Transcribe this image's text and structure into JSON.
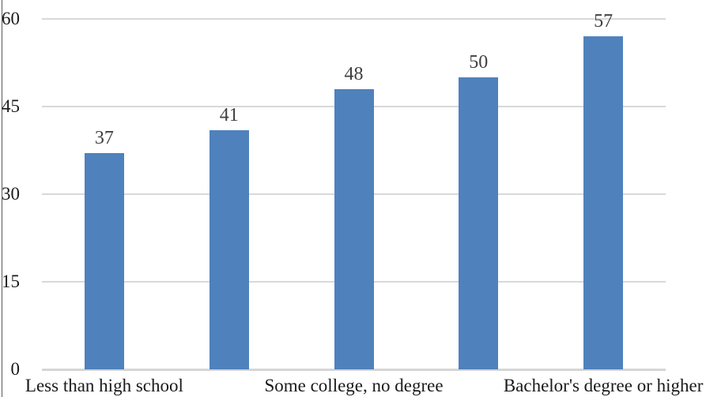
{
  "chart_data": {
    "type": "bar",
    "categories": [
      "Less than high school",
      "",
      "Some college, no degree",
      "",
      "Bachelor's degree or higher"
    ],
    "values": [
      37,
      41,
      48,
      50,
      57
    ],
    "title": "",
    "xlabel": "",
    "ylabel": "",
    "ylim": [
      0,
      60
    ],
    "yticks": [
      0,
      15,
      30,
      45,
      60
    ],
    "grid": true,
    "legend": false,
    "bar_color": "#4F81BD",
    "gridline_color": "#D9D9D9",
    "axis_line_color": "#D6D6D6",
    "data_label_color": "#404040",
    "tick_label_color": "#1A1A1A"
  }
}
